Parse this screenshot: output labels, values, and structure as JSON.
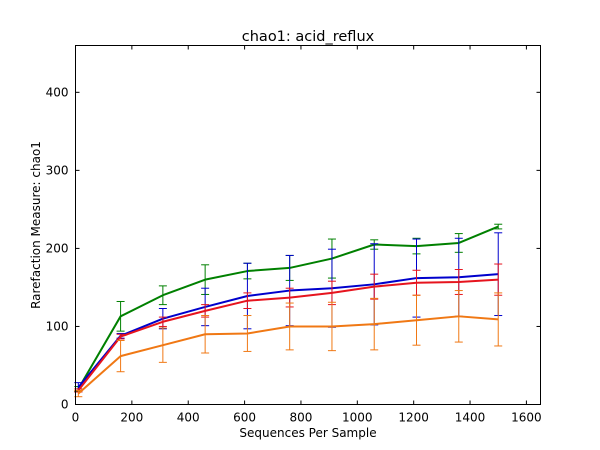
{
  "chart_data": {
    "type": "line",
    "title": "chao1: acid_reflux",
    "xlabel": "Sequences Per Sample",
    "ylabel": "Rarefaction Measure: chao1",
    "xlim": [
      0,
      1650
    ],
    "ylim": [
      0,
      460
    ],
    "x_ticks": [
      0,
      200,
      400,
      600,
      800,
      1000,
      1200,
      1400,
      1600
    ],
    "y_ticks": [
      0,
      100,
      200,
      300,
      400
    ],
    "grid": false,
    "x": [
      10,
      160,
      310,
      460,
      610,
      760,
      910,
      1060,
      1210,
      1360,
      1500
    ],
    "series": [
      {
        "color": "#008000",
        "values": [
          20,
          113,
          140,
          160,
          171,
          175,
          187,
          205,
          203,
          207,
          228
        ],
        "err": [
          3,
          19,
          12,
          19,
          10,
          16,
          25,
          6,
          10,
          12,
          3
        ]
      },
      {
        "color": "#0000cc",
        "values": [
          22,
          88,
          110,
          125,
          139,
          146,
          149,
          154,
          162,
          163,
          167
        ],
        "err": [
          6,
          3,
          13,
          24,
          42,
          45,
          50,
          52,
          50,
          50,
          53
        ]
      },
      {
        "color": "#e6141e",
        "values": [
          18,
          87,
          106,
          120,
          133,
          137,
          143,
          151,
          156,
          157,
          160
        ],
        "err": [
          2,
          3,
          6,
          8,
          10,
          12,
          15,
          16,
          16,
          16,
          20
        ]
      },
      {
        "color": "#f07814",
        "values": [
          14,
          62,
          76,
          90,
          91,
          100,
          100,
          103,
          108,
          113,
          109
        ],
        "err": [
          4,
          20,
          22,
          24,
          23,
          30,
          31,
          33,
          32,
          33,
          34
        ]
      }
    ]
  }
}
